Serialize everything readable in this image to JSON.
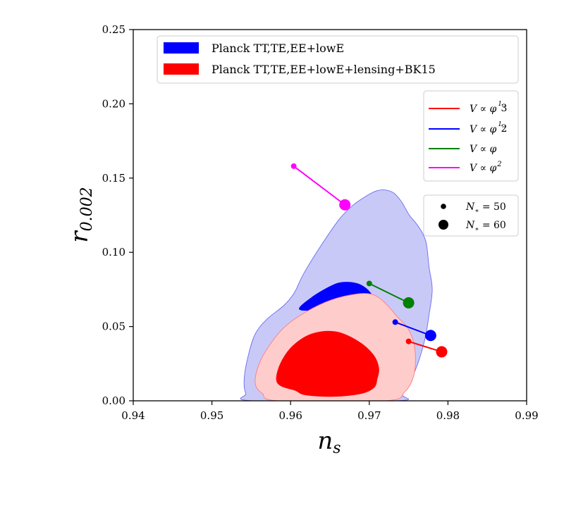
{
  "chart_data": {
    "type": "scatter",
    "xlabel_main": "n",
    "xlabel_sub": "s",
    "ylabel_main": "r",
    "ylabel_sub": "0.002",
    "xlim": [
      0.94,
      0.99
    ],
    "ylim": [
      0.0,
      0.25
    ],
    "xticks": [
      "0.94",
      "0.95",
      "0.96",
      "0.97",
      "0.98",
      "0.99"
    ],
    "yticks": [
      "0.00",
      "0.05",
      "0.10",
      "0.15",
      "0.20",
      "0.25"
    ],
    "grid": false,
    "contour_legend": {
      "placement": "top",
      "entries": [
        {
          "label": "Planck TT,TE,EE+lowE",
          "color": "#0000ff"
        },
        {
          "label": "Planck TT,TE,EE+lowE+lensing+BK15",
          "color": "#ff0000"
        }
      ]
    },
    "contours": [
      {
        "name": "Planck TT,TE,EE+lowE",
        "level": "95%",
        "color": "#0000ff",
        "points": [
          [
            0.9553,
            0.0
          ],
          [
            0.9543,
            0.005
          ],
          [
            0.9541,
            0.015
          ],
          [
            0.9546,
            0.03
          ],
          [
            0.9555,
            0.045
          ],
          [
            0.957,
            0.055
          ],
          [
            0.9592,
            0.0645
          ],
          [
            0.9605,
            0.073
          ],
          [
            0.9617,
            0.086
          ],
          [
            0.9643,
            0.108
          ],
          [
            0.9663,
            0.123
          ],
          [
            0.968,
            0.132
          ],
          [
            0.9698,
            0.1385
          ],
          [
            0.971,
            0.1415
          ],
          [
            0.972,
            0.142
          ],
          [
            0.9731,
            0.14
          ],
          [
            0.9741,
            0.134
          ],
          [
            0.9751,
            0.125
          ],
          [
            0.9763,
            0.117
          ],
          [
            0.9772,
            0.107
          ],
          [
            0.9776,
            0.09
          ],
          [
            0.978,
            0.075
          ],
          [
            0.9776,
            0.058
          ],
          [
            0.977,
            0.04
          ],
          [
            0.9758,
            0.02
          ],
          [
            0.9742,
            0.005
          ],
          [
            0.9735,
            0.0
          ]
        ]
      },
      {
        "name": "Planck TT,TE,EE+lowE",
        "level": "68%",
        "color": "#0000ff",
        "points": [
          [
            0.9611,
            0.062
          ],
          [
            0.9628,
            0.07
          ],
          [
            0.9645,
            0.0755
          ],
          [
            0.966,
            0.0792
          ],
          [
            0.9676,
            0.0798
          ],
          [
            0.969,
            0.0778
          ],
          [
            0.9701,
            0.073
          ],
          [
            0.971,
            0.065
          ],
          [
            0.9718,
            0.056
          ],
          [
            0.9725,
            0.045
          ],
          [
            0.9688,
            0.058
          ],
          [
            0.9655,
            0.062
          ],
          [
            0.963,
            0.061
          ]
        ]
      },
      {
        "name": "Planck TT,TE,EE+lowE+lensing+BK15",
        "level": "95%",
        "color": "#ff0000",
        "points": [
          [
            0.9585,
            0.0
          ],
          [
            0.9564,
            0.005
          ],
          [
            0.9555,
            0.012
          ],
          [
            0.956,
            0.025
          ],
          [
            0.9574,
            0.038
          ],
          [
            0.9593,
            0.05
          ],
          [
            0.962,
            0.06
          ],
          [
            0.9652,
            0.068
          ],
          [
            0.9685,
            0.072
          ],
          [
            0.9705,
            0.0715
          ],
          [
            0.972,
            0.066
          ],
          [
            0.9735,
            0.057
          ],
          [
            0.975,
            0.048
          ],
          [
            0.9758,
            0.035
          ],
          [
            0.9757,
            0.018
          ],
          [
            0.9745,
            0.006
          ],
          [
            0.972,
            0.0
          ]
        ]
      },
      {
        "name": "Planck TT,TE,EE+lowE+lensing+BK15",
        "level": "68%",
        "color": "#ff0000",
        "points": [
          [
            0.9606,
            0.007
          ],
          [
            0.9619,
            0.004
          ],
          [
            0.9655,
            0.003
          ],
          [
            0.969,
            0.005
          ],
          [
            0.9706,
            0.009
          ],
          [
            0.971,
            0.015
          ],
          [
            0.9712,
            0.022
          ],
          [
            0.9705,
            0.031
          ],
          [
            0.9686,
            0.04
          ],
          [
            0.9657,
            0.0465
          ],
          [
            0.9627,
            0.045
          ],
          [
            0.9603,
            0.037
          ],
          [
            0.9588,
            0.026
          ],
          [
            0.9582,
            0.015
          ],
          [
            0.9588,
            0.01
          ]
        ]
      }
    ],
    "series": [
      {
        "name": "V ∝ φ^(1/3)",
        "color": "#ff0000",
        "points": [
          [
            0.975,
            0.04
          ],
          [
            0.9792,
            0.033
          ]
        ]
      },
      {
        "name": "V ∝ φ^(1/2)",
        "color": "#0000ff",
        "points": [
          [
            0.9733,
            0.053
          ],
          [
            0.9778,
            0.044
          ]
        ]
      },
      {
        "name": "V ∝ φ",
        "color": "#008000",
        "points": [
          [
            0.97,
            0.079
          ],
          [
            0.975,
            0.066
          ]
        ]
      },
      {
        "name": "V ∝ φ^2",
        "color": "#ff00ff",
        "points": [
          [
            0.9604,
            0.158
          ],
          [
            0.9669,
            0.132
          ]
        ]
      }
    ],
    "point_annotations": [
      "N* = 50 (small marker)",
      "N* = 60 (large marker)"
    ],
    "model_legend": {
      "placement": "upper right",
      "entries": [
        {
          "label_base": "V ∝ φ",
          "exp_num": "1",
          "exp_den": "3",
          "color": "#ff0000"
        },
        {
          "label_base": "V ∝ φ",
          "exp_num": "1",
          "exp_den": "2",
          "color": "#0000ff"
        },
        {
          "label_base": "V ∝ φ",
          "exp": "",
          "color": "#008000"
        },
        {
          "label_base": "V ∝ φ",
          "exp": "2",
          "color": "#ff00ff"
        }
      ]
    },
    "marker_legend": {
      "placement": "right",
      "entries": [
        {
          "label_base": "N",
          "label_sub": "∗",
          "label_value": " = 50",
          "size": "small"
        },
        {
          "label_base": "N",
          "label_sub": "∗",
          "label_value": " = 60",
          "size": "large"
        }
      ]
    }
  }
}
